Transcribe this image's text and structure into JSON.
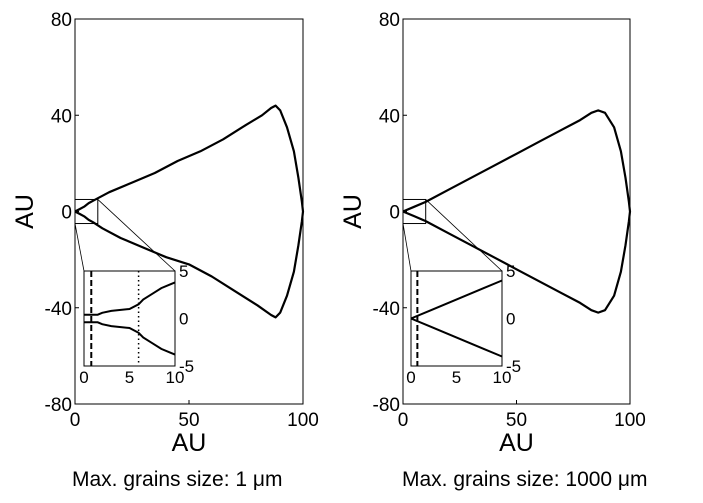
{
  "chart_data": [
    {
      "type": "line",
      "xlabel": "AU",
      "ylabel": "AU",
      "xlim": [
        0,
        100
      ],
      "ylim": [
        -80,
        80
      ],
      "xticks": [
        "0",
        "50",
        "100"
      ],
      "yticks": [
        "80",
        "40",
        "0",
        "-40",
        "-80"
      ],
      "caption": "Max. grains size: 1 μm",
      "series": [
        {
          "values": [
            [
              0,
              0
            ],
            [
              2,
              1
            ],
            [
              4,
              2
            ],
            [
              6,
              3.5
            ],
            [
              8,
              4.5
            ],
            [
              15,
              8
            ],
            [
              25,
              12
            ],
            [
              35,
              16
            ],
            [
              45,
              21
            ],
            [
              55,
              25
            ],
            [
              65,
              30
            ],
            [
              75,
              36
            ],
            [
              82,
              40
            ],
            [
              86,
              43
            ],
            [
              88,
              44
            ],
            [
              90,
              42
            ],
            [
              93,
              35
            ],
            [
              96,
              25
            ],
            [
              98,
              14
            ],
            [
              99.5,
              4
            ],
            [
              100,
              0
            ],
            [
              99.5,
              -4
            ],
            [
              98,
              -14
            ],
            [
              96,
              -25
            ],
            [
              93,
              -35
            ],
            [
              90,
              -42
            ],
            [
              88,
              -44
            ],
            [
              86,
              -43
            ],
            [
              80,
              -39
            ],
            [
              70,
              -33
            ],
            [
              60,
              -27
            ],
            [
              50,
              -22
            ],
            [
              40,
              -19
            ],
            [
              30,
              -15
            ],
            [
              20,
              -11
            ],
            [
              12,
              -7
            ],
            [
              8,
              -4.5
            ],
            [
              6,
              -3.5
            ],
            [
              4,
              -2
            ],
            [
              2,
              -1
            ],
            [
              0,
              0
            ]
          ]
        }
      ],
      "inset": {
        "xlim": [
          0,
          10
        ],
        "ylim": [
          -5,
          5
        ],
        "xticks": [
          "0",
          "5",
          "10"
        ],
        "yticks": [
          "5",
          "0",
          "-5"
        ],
        "vlines": [
          {
            "x": 0.8,
            "style": "dashed"
          },
          {
            "x": 6,
            "style": "dotted"
          }
        ],
        "series": [
          {
            "values": [
              [
                0,
                0.4
              ],
              [
                1.5,
                0.4
              ],
              [
                2,
                0.6
              ],
              [
                3,
                0.8
              ],
              [
                5,
                1
              ],
              [
                6,
                1.5
              ],
              [
                6.5,
                2
              ],
              [
                7.5,
                2.6
              ],
              [
                8.5,
                3.2
              ],
              [
                9.5,
                3.6
              ],
              [
                10,
                3.8
              ]
            ]
          },
          {
            "values": [
              [
                0,
                -0.4
              ],
              [
                1.5,
                -0.4
              ],
              [
                2,
                -0.6
              ],
              [
                3,
                -0.8
              ],
              [
                5,
                -1
              ],
              [
                6,
                -1.5
              ],
              [
                6.5,
                -2
              ],
              [
                7.5,
                -2.6
              ],
              [
                8.5,
                -3.2
              ],
              [
                9.5,
                -3.6
              ],
              [
                10,
                -3.8
              ]
            ]
          }
        ]
      }
    },
    {
      "type": "line",
      "xlabel": "AU",
      "ylabel": "AU",
      "xlim": [
        0,
        100
      ],
      "ylim": [
        -80,
        80
      ],
      "xticks": [
        "0",
        "50",
        "100"
      ],
      "yticks": [
        "80",
        "40",
        "0",
        "-40",
        "-80"
      ],
      "caption": "Max. grains size: 1000 μm",
      "series": [
        {
          "values": [
            [
              0,
              0
            ],
            [
              5,
              2
            ],
            [
              10,
              4
            ],
            [
              20,
              9
            ],
            [
              30,
              14
            ],
            [
              40,
              19
            ],
            [
              50,
              24
            ],
            [
              60,
              29
            ],
            [
              70,
              34
            ],
            [
              78,
              38
            ],
            [
              83,
              41
            ],
            [
              86,
              42
            ],
            [
              89,
              41
            ],
            [
              93,
              35
            ],
            [
              96,
              25
            ],
            [
              98,
              14
            ],
            [
              99.5,
              4
            ],
            [
              100,
              0
            ],
            [
              99.5,
              -4
            ],
            [
              98,
              -14
            ],
            [
              96,
              -25
            ],
            [
              93,
              -35
            ],
            [
              89,
              -41
            ],
            [
              86,
              -42
            ],
            [
              83,
              -41
            ],
            [
              78,
              -38
            ],
            [
              70,
              -34
            ],
            [
              60,
              -29
            ],
            [
              50,
              -24
            ],
            [
              40,
              -19
            ],
            [
              30,
              -14
            ],
            [
              20,
              -9
            ],
            [
              10,
              -4
            ],
            [
              5,
              -2
            ],
            [
              0,
              0
            ]
          ]
        }
      ],
      "inset": {
        "xlim": [
          0,
          10
        ],
        "ylim": [
          -5,
          5
        ],
        "xticks": [
          "0",
          "5",
          "10"
        ],
        "yticks": [
          "5",
          "0",
          "-5"
        ],
        "vlines": [
          {
            "x": 0.7,
            "style": "dashed"
          }
        ],
        "series": [
          {
            "values": [
              [
                0,
                0
              ],
              [
                2,
                0.8
              ],
              [
                4,
                1.6
              ],
              [
                6,
                2.4
              ],
              [
                8,
                3.2
              ],
              [
                10,
                4
              ]
            ]
          },
          {
            "values": [
              [
                0,
                0
              ],
              [
                2,
                -0.8
              ],
              [
                4,
                -1.6
              ],
              [
                6,
                -2.4
              ],
              [
                8,
                -3.2
              ],
              [
                10,
                -4
              ]
            ]
          }
        ]
      }
    }
  ]
}
